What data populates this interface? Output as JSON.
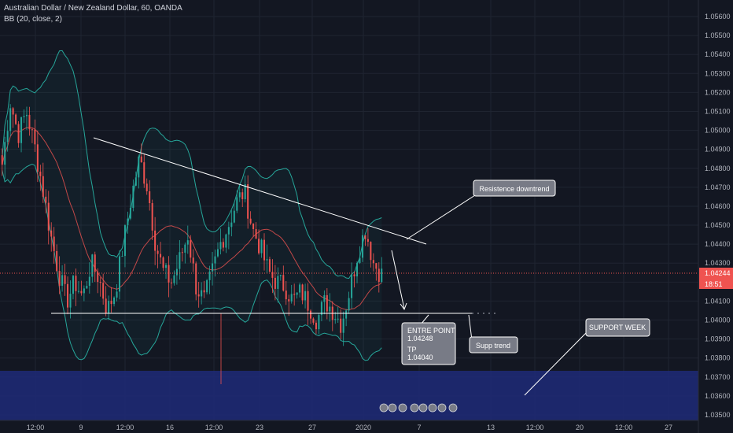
{
  "header": {
    "symbol_line": "Australian Dollar / New Zealand Dollar, 60, OANDA",
    "indicator_line": "BB (20, close, 2)"
  },
  "colors": {
    "background": "#131722",
    "grid": "#1f2431",
    "candle_up": "#26a69a",
    "candle_down": "#ef5350",
    "bb_band": "#26a69a",
    "bb_basis": "#ef5350",
    "support_zone": "#1e2a78",
    "trendline": "#ffffff",
    "price_label": "#ef5350",
    "callout_box": "#787b86"
  },
  "chart_data": {
    "type": "candlestick",
    "y_axis": {
      "range": [
        1.0355,
        1.0565
      ],
      "ticks": [
        "1.05600",
        "1.05500",
        "1.05400",
        "1.05300",
        "1.05200",
        "1.05100",
        "1.05000",
        "1.04900",
        "1.04800",
        "1.04700",
        "1.04600",
        "1.04500",
        "1.04400",
        "1.04300",
        "1.04200",
        "1.04100",
        "1.04000",
        "1.03900",
        "1.03800",
        "1.03700",
        "1.03600",
        "1.03500"
      ]
    },
    "x_axis": {
      "ticks": [
        "12:00",
        "9",
        "12:00",
        "16",
        "12:00",
        "23",
        "27",
        "2020",
        "7",
        "13",
        "12:00",
        "20",
        "12:00",
        "27"
      ]
    },
    "current_price": "1.04244",
    "countdown": "18:51",
    "price_path": [
      1.0482,
      1.0515,
      1.0498,
      1.051,
      1.0492,
      1.047,
      1.0445,
      1.0425,
      1.041,
      1.042,
      1.0412,
      1.043,
      1.0422,
      1.0405,
      1.0415,
      1.044,
      1.0465,
      1.0485,
      1.047,
      1.044,
      1.0425,
      1.042,
      1.0432,
      1.0445,
      1.0418,
      1.041,
      1.0425,
      1.044,
      1.045,
      1.0462,
      1.0468,
      1.0448,
      1.0438,
      1.0425,
      1.042,
      1.0418,
      1.041,
      1.0415,
      1.0408,
      1.04,
      1.041,
      1.0405,
      1.0398,
      1.0415,
      1.0435,
      1.0448,
      1.043,
      1.0424
    ],
    "annotations": {
      "resistance_label": "Resistence downtrend",
      "support_week_label": "SUPPORT WEEK",
      "supp_trend_label": "Supp trend",
      "entry_label": "ENTRE POINT",
      "entry_value": "1.04248",
      "tp_label": "TP",
      "tp_value": "1.04040"
    },
    "lines": {
      "resistance_downtrend": [
        [
          1.049,
          1.0438
        ]
      ],
      "support_trend_level": 1.0404,
      "support_week_zone": [
        1.0353,
        1.0373
      ]
    },
    "grid": true
  }
}
